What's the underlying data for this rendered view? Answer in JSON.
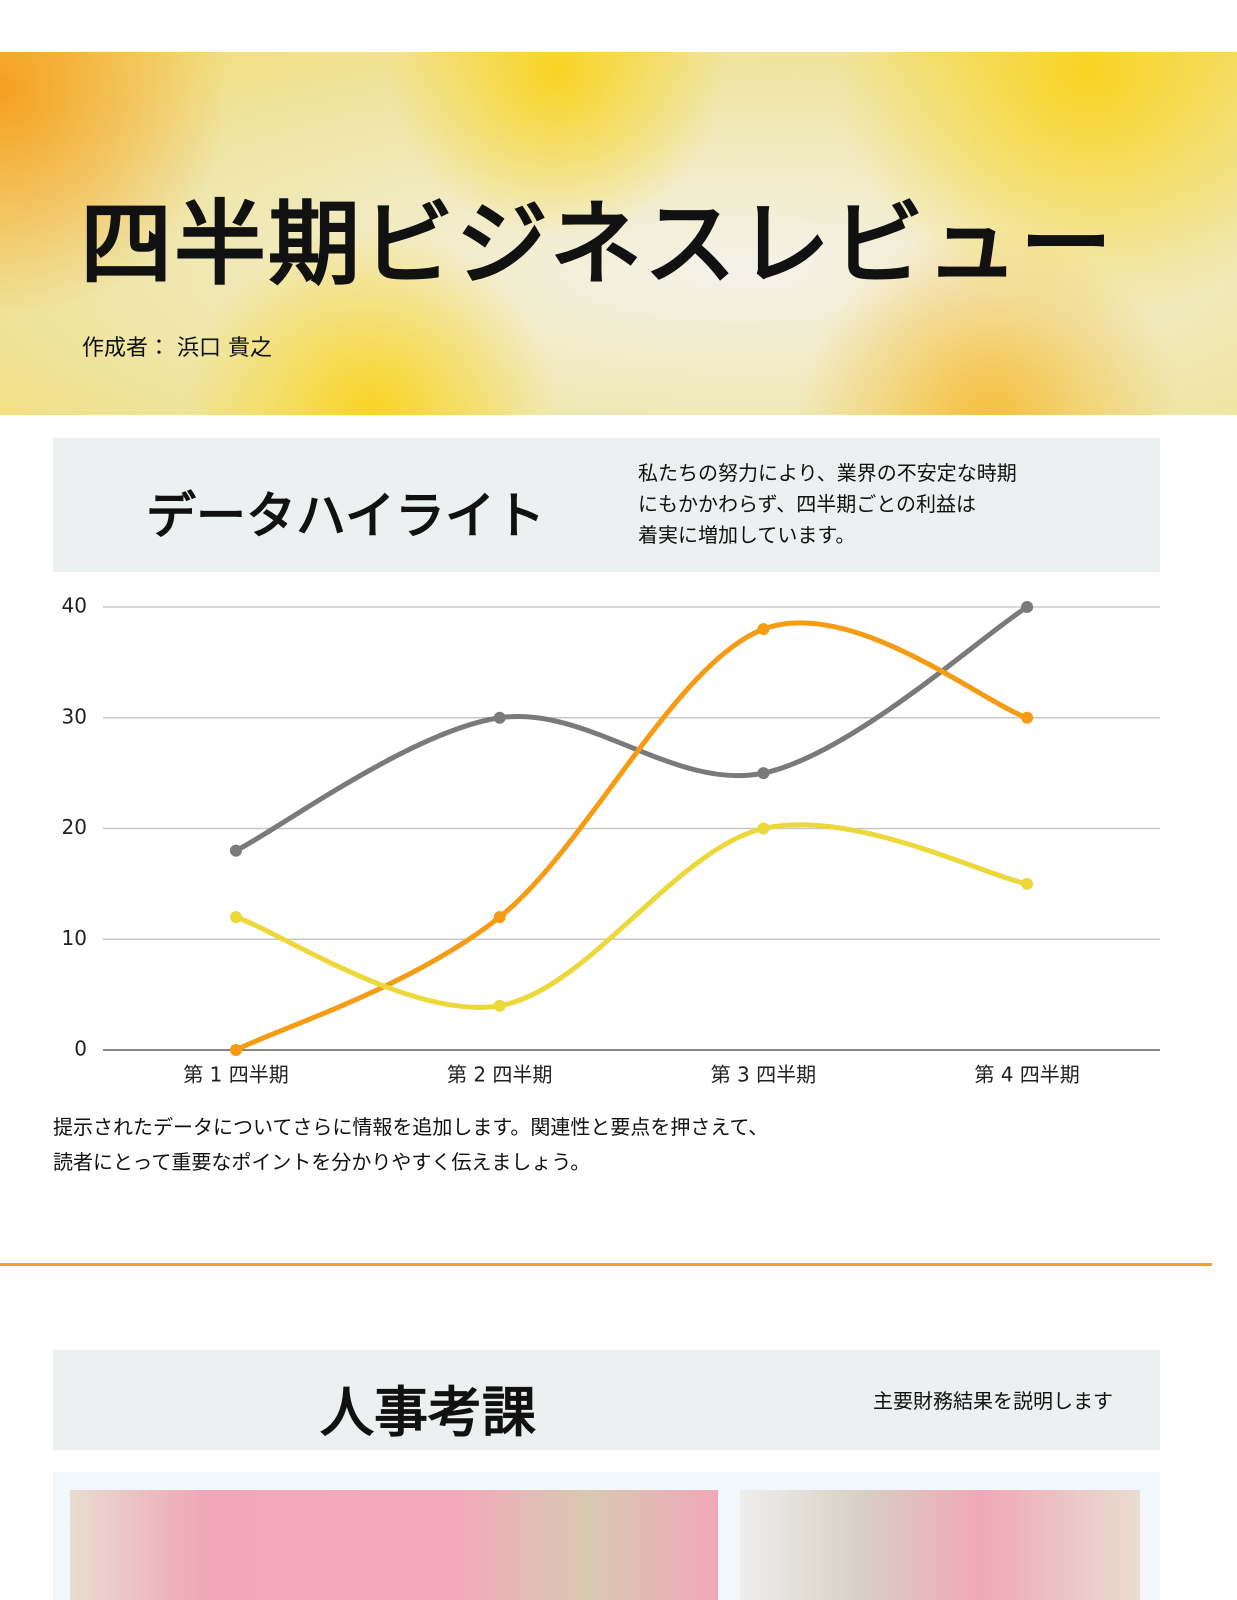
{
  "header": {
    "title": "四半期ビジネスレビュー",
    "author": "作成者： 浜口 貴之"
  },
  "highlight": {
    "heading": "データハイライト",
    "description": [
      "私たちの努力により、業界の不安定な時期",
      "にもかかわらず、四半期ごとの利益は",
      "着実に増加しています。"
    ]
  },
  "chart_data": {
    "type": "line",
    "categories": [
      "第 1 四半期",
      "第 2 四半期",
      "第 3 四半期",
      "第 4 四半期"
    ],
    "series": [
      {
        "color": "#7a7a7a",
        "values": [
          18,
          30,
          25,
          40
        ]
      },
      {
        "color": "#f59b14",
        "values": [
          0,
          12,
          38,
          30
        ]
      },
      {
        "color": "#ecd83a",
        "values": [
          12,
          4,
          20,
          15
        ]
      }
    ],
    "ylim": [
      0,
      40
    ],
    "yticks": [
      0,
      10,
      20,
      30,
      40
    ],
    "grid": true,
    "smooth": true
  },
  "note": [
    "提示されたデータについてさらに情報を追加します。関連性と要点を押さえて、",
    "読者にとって重要なポイントを分かりやすく伝えましょう。"
  ],
  "review": {
    "heading": "人事考課",
    "description": "主要財務結果を説明します"
  }
}
